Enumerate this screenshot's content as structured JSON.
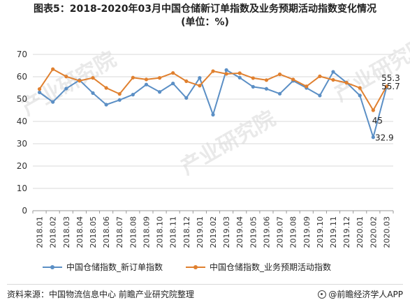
{
  "title": {
    "line1": "图表5：2018-2020年03月中国仓储新订单指数及业务预期活动指数变化情况",
    "line2": "(单位：%)"
  },
  "watermark": "产业研究院",
  "footer": {
    "source": "资料来源：中国物流信息中心 前瞻产业研究院整理",
    "brand": "@前瞻经济学人APP"
  },
  "colors": {
    "series1": "#5b8fc5",
    "series2": "#e0802f",
    "grid": "#d9d9d9",
    "axis": "#999999"
  },
  "chart_data": {
    "type": "line",
    "categories": [
      "2018.01",
      "2018.02",
      "2018.03",
      "2018.04",
      "2018.05",
      "2018.06",
      "2018.07",
      "2018.08",
      "2018.09",
      "2018.10",
      "2018.11",
      "2018.12",
      "2019.01",
      "2019.02",
      "2019.03",
      "2019.04",
      "2019.05",
      "2019.06",
      "2019.07",
      "2019.08",
      "2019.09",
      "2019.10",
      "2019.11",
      "2019.12",
      "2020.01",
      "2020.02",
      "2020.03"
    ],
    "ylim": [
      0,
      70
    ],
    "yticks": [
      0,
      10,
      20,
      30,
      40,
      50,
      60,
      70
    ],
    "grid": true,
    "legend_position": "bottom",
    "series": [
      {
        "name": "中国仓储指数_新订单指数",
        "values": [
          53.0,
          48.7,
          54.7,
          58.5,
          52.7,
          47.5,
          49.6,
          52.0,
          56.5,
          53.2,
          57.0,
          50.5,
          59.5,
          43.0,
          63.0,
          59.6,
          55.5,
          54.6,
          52.4,
          58.2,
          55.0,
          51.6,
          62.2,
          57.4,
          51.6,
          32.9,
          55.3
        ]
      },
      {
        "name": "中国仓储指数_业务预期活动指数",
        "values": [
          54.5,
          63.4,
          60.1,
          58.2,
          59.5,
          55.0,
          52.3,
          59.6,
          58.8,
          59.5,
          61.7,
          58.0,
          56.0,
          62.5,
          61.3,
          61.6,
          59.4,
          58.5,
          61.1,
          58.8,
          55.7,
          60.2,
          58.6,
          57.3,
          55.0,
          45.0,
          55.7
        ]
      }
    ],
    "annotations": [
      {
        "series": 0,
        "index": 25,
        "text": "32.9"
      },
      {
        "series": 0,
        "index": 26,
        "text": "55.3"
      },
      {
        "series": 1,
        "index": 25,
        "text": "45"
      },
      {
        "series": 1,
        "index": 26,
        "text": "55.7"
      }
    ]
  }
}
